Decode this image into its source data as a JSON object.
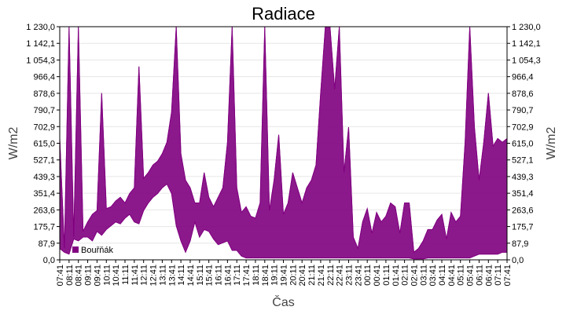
{
  "chart_data": {
    "type": "area",
    "title": "Radiace",
    "xlabel": "Čas",
    "ylabel": "W/m2",
    "ylim": [
      0,
      1230
    ],
    "y_ticks": [
      0,
      87.9,
      175.7,
      263.6,
      351.4,
      439.3,
      527.1,
      615.0,
      702.9,
      790.7,
      878.6,
      966.4,
      1054.3,
      1142.1,
      1230.0
    ],
    "y_tick_labels": [
      "0,0",
      "87,9",
      "175,7",
      "263,6",
      "351,4",
      "439,3",
      "527,1",
      "615,0",
      "702,9",
      "790,7",
      "878,6",
      "966,4",
      "1 054,3",
      "1 142,1",
      "1 230,0"
    ],
    "x_tick_labels": [
      "07:41",
      "08:11",
      "08:41",
      "09:11",
      "09:41",
      "10:11",
      "10:41",
      "11:11",
      "11:41",
      "12:11",
      "12:41",
      "13:11",
      "13:41",
      "14:11",
      "14:41",
      "15:11",
      "15:41",
      "16:11",
      "16:41",
      "17:11",
      "17:41",
      "18:11",
      "18:41",
      "19:11",
      "19:41",
      "20:11",
      "20:41",
      "21:11",
      "21:41",
      "22:11",
      "22:41",
      "23:11",
      "23:41",
      "00:11",
      "00:41",
      "01:11",
      "01:41",
      "02:11",
      "02:41",
      "03:11",
      "03:41",
      "04:11",
      "04:41",
      "05:11",
      "05:41",
      "06:11",
      "06:41",
      "07:11",
      "07:41"
    ],
    "grid": true,
    "series": [
      {
        "name": "Bouřňák",
        "color": "#800080",
        "x": [
          0,
          0.5,
          1,
          1.5,
          2,
          2.5,
          3,
          3.5,
          4,
          4.5,
          5,
          5.5,
          6,
          6.5,
          7,
          7.5,
          8,
          8.5,
          9,
          9.5,
          10,
          10.5,
          11,
          11.5,
          12,
          12.5,
          13,
          13.5,
          14,
          14.5,
          15,
          15.5,
          16,
          16.5,
          17,
          17.5,
          18,
          18.5,
          19,
          19.5,
          20,
          20.5,
          21,
          21.5,
          22,
          22.5,
          23,
          23.5,
          24,
          24.5,
          25,
          25.5,
          26,
          26.5,
          27,
          27.5,
          28,
          28.5,
          29,
          29.5,
          30,
          30.5,
          31,
          31.5,
          32,
          32.5,
          33,
          33.5,
          34,
          34.5,
          35,
          35.5,
          36,
          36.5,
          37,
          37.5,
          38,
          38.5,
          39,
          39.5,
          40,
          40.5,
          41,
          41.5,
          42,
          42.5,
          43,
          43.5,
          44,
          44.5,
          45,
          45.5,
          46,
          46.5,
          47,
          47.5,
          48
        ],
        "upper": [
          640,
          60,
          1230,
          120,
          1230,
          150,
          200,
          240,
          260,
          880,
          270,
          280,
          310,
          330,
          300,
          350,
          380,
          1020,
          430,
          460,
          500,
          520,
          560,
          620,
          780,
          1230,
          560,
          420,
          380,
          300,
          300,
          460,
          330,
          280,
          330,
          380,
          620,
          1230,
          380,
          250,
          280,
          230,
          220,
          300,
          1230,
          260,
          420,
          660,
          240,
          300,
          460,
          380,
          300,
          380,
          420,
          500,
          880,
          1230,
          1230,
          900,
          1230,
          460,
          700,
          120,
          60,
          200,
          270,
          140,
          250,
          200,
          230,
          300,
          280,
          140,
          300,
          300,
          40,
          60,
          100,
          160,
          160,
          210,
          240,
          110,
          250,
          200,
          230,
          620,
          1230,
          700,
          420,
          620,
          880,
          600,
          640,
          620,
          640
        ],
        "lower": [
          60,
          40,
          30,
          110,
          100,
          120,
          120,
          100,
          150,
          130,
          160,
          180,
          200,
          190,
          220,
          240,
          200,
          190,
          260,
          300,
          330,
          350,
          380,
          400,
          350,
          180,
          100,
          40,
          100,
          200,
          120,
          160,
          150,
          110,
          80,
          90,
          100,
          50,
          50,
          20,
          10,
          10,
          10,
          10,
          10,
          10,
          10,
          10,
          10,
          10,
          10,
          10,
          10,
          10,
          10,
          10,
          10,
          10,
          10,
          10,
          10,
          10,
          10,
          10,
          10,
          10,
          10,
          10,
          10,
          10,
          10,
          10,
          10,
          10,
          10,
          10,
          5,
          5,
          5,
          10,
          10,
          10,
          10,
          10,
          10,
          10,
          10,
          10,
          10,
          20,
          30,
          30,
          30,
          30,
          30,
          40,
          40
        ]
      }
    ]
  }
}
